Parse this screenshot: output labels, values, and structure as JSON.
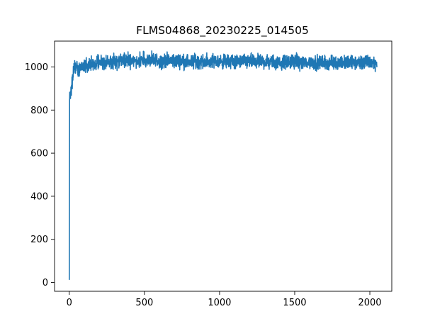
{
  "chart_data": {
    "type": "line",
    "title": "FLMS04868_20230225_014505",
    "xlabel": "",
    "ylabel": "",
    "xlim": [
      -98,
      2146
    ],
    "ylim": [
      -41,
      1120
    ],
    "xticks": [
      0,
      500,
      1000,
      1500,
      2000
    ],
    "yticks": [
      0,
      200,
      400,
      600,
      800,
      1000
    ],
    "grid": false,
    "line_color": "#1f77b4",
    "n_points": 2048,
    "x_range": [
      0,
      2047
    ],
    "plateau_mean": 1025,
    "noise_amplitude": 28,
    "x": [
      0,
      2,
      4,
      6,
      10,
      15,
      20,
      25,
      30,
      40,
      50,
      60,
      80,
      100,
      125,
      150,
      200,
      250,
      300,
      400,
      500,
      600,
      700,
      800,
      900,
      1000,
      1100,
      1200,
      1300,
      1400,
      1500,
      1600,
      1700,
      1800,
      1900,
      2000,
      2047
    ],
    "y": [
      12,
      845,
      895,
      860,
      890,
      905,
      930,
      960,
      985,
      1000,
      1005,
      995,
      1000,
      1005,
      1005,
      1010,
      1020,
      1025,
      1025,
      1030,
      1030,
      1030,
      1030,
      1025,
      1025,
      1025,
      1025,
      1025,
      1025,
      1020,
      1025,
      1020,
      1020,
      1020,
      1020,
      1020,
      1015
    ]
  }
}
